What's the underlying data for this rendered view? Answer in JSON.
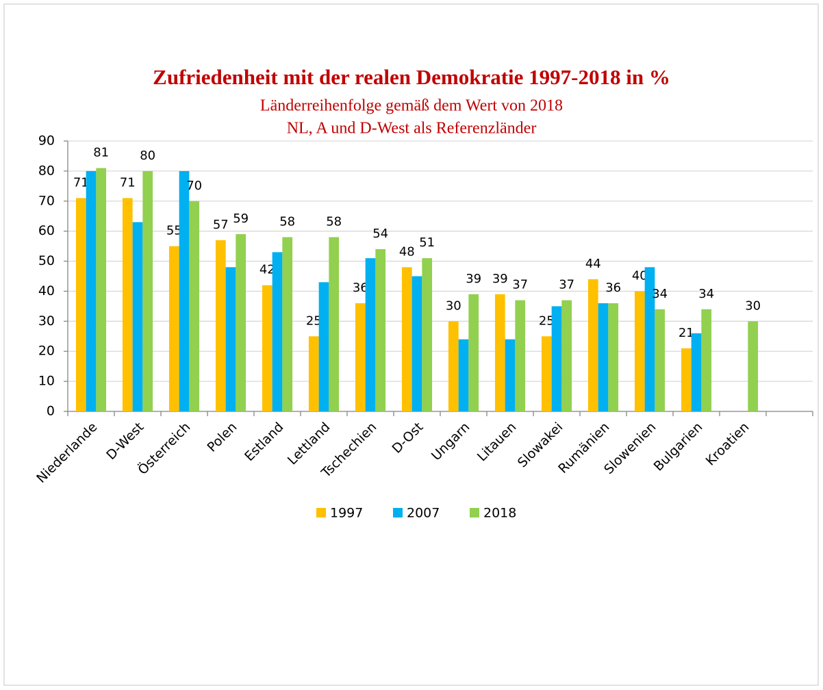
{
  "chart_data": {
    "type": "bar",
    "title": "Zufriedenheit mit der realen Demokratie 1997-2018 in %",
    "subtitle": [
      "Länderreihenfolge gemäß dem Wert von 2018",
      "NL, A und D-West als Referenzländer"
    ],
    "categories": [
      "Niederlande",
      "D-West",
      "Österreich",
      "Polen",
      "Estland",
      "Lettland",
      "Tschechien",
      "D-Ost",
      "Ungarn",
      "Litauen",
      "Slowakei",
      "Rumänien",
      "Slowenien",
      "Bulgarien",
      "Kroatien",
      null
    ],
    "series": [
      {
        "name": "1997",
        "color": "#ffc000",
        "data_labels": true,
        "values": [
          71,
          71,
          55,
          57,
          42,
          25,
          36,
          48,
          30,
          39,
          25,
          44,
          40,
          21,
          null,
          null
        ]
      },
      {
        "name": "2007",
        "color": "#00b0f0",
        "data_labels": false,
        "values": [
          80,
          63,
          80,
          48,
          53,
          43,
          51,
          45,
          24,
          24,
          35,
          36,
          48,
          26,
          null,
          null
        ]
      },
      {
        "name": "2018",
        "color": "#92d050",
        "data_labels": true,
        "values": [
          81,
          80,
          70,
          59,
          58,
          58,
          54,
          51,
          39,
          37,
          37,
          36,
          34,
          34,
          30,
          null
        ]
      }
    ],
    "ylim": [
      0,
      90
    ],
    "yticks": [
      0,
      10,
      20,
      30,
      40,
      50,
      60,
      70,
      80,
      90
    ],
    "grid": true,
    "legend": "bottom"
  }
}
